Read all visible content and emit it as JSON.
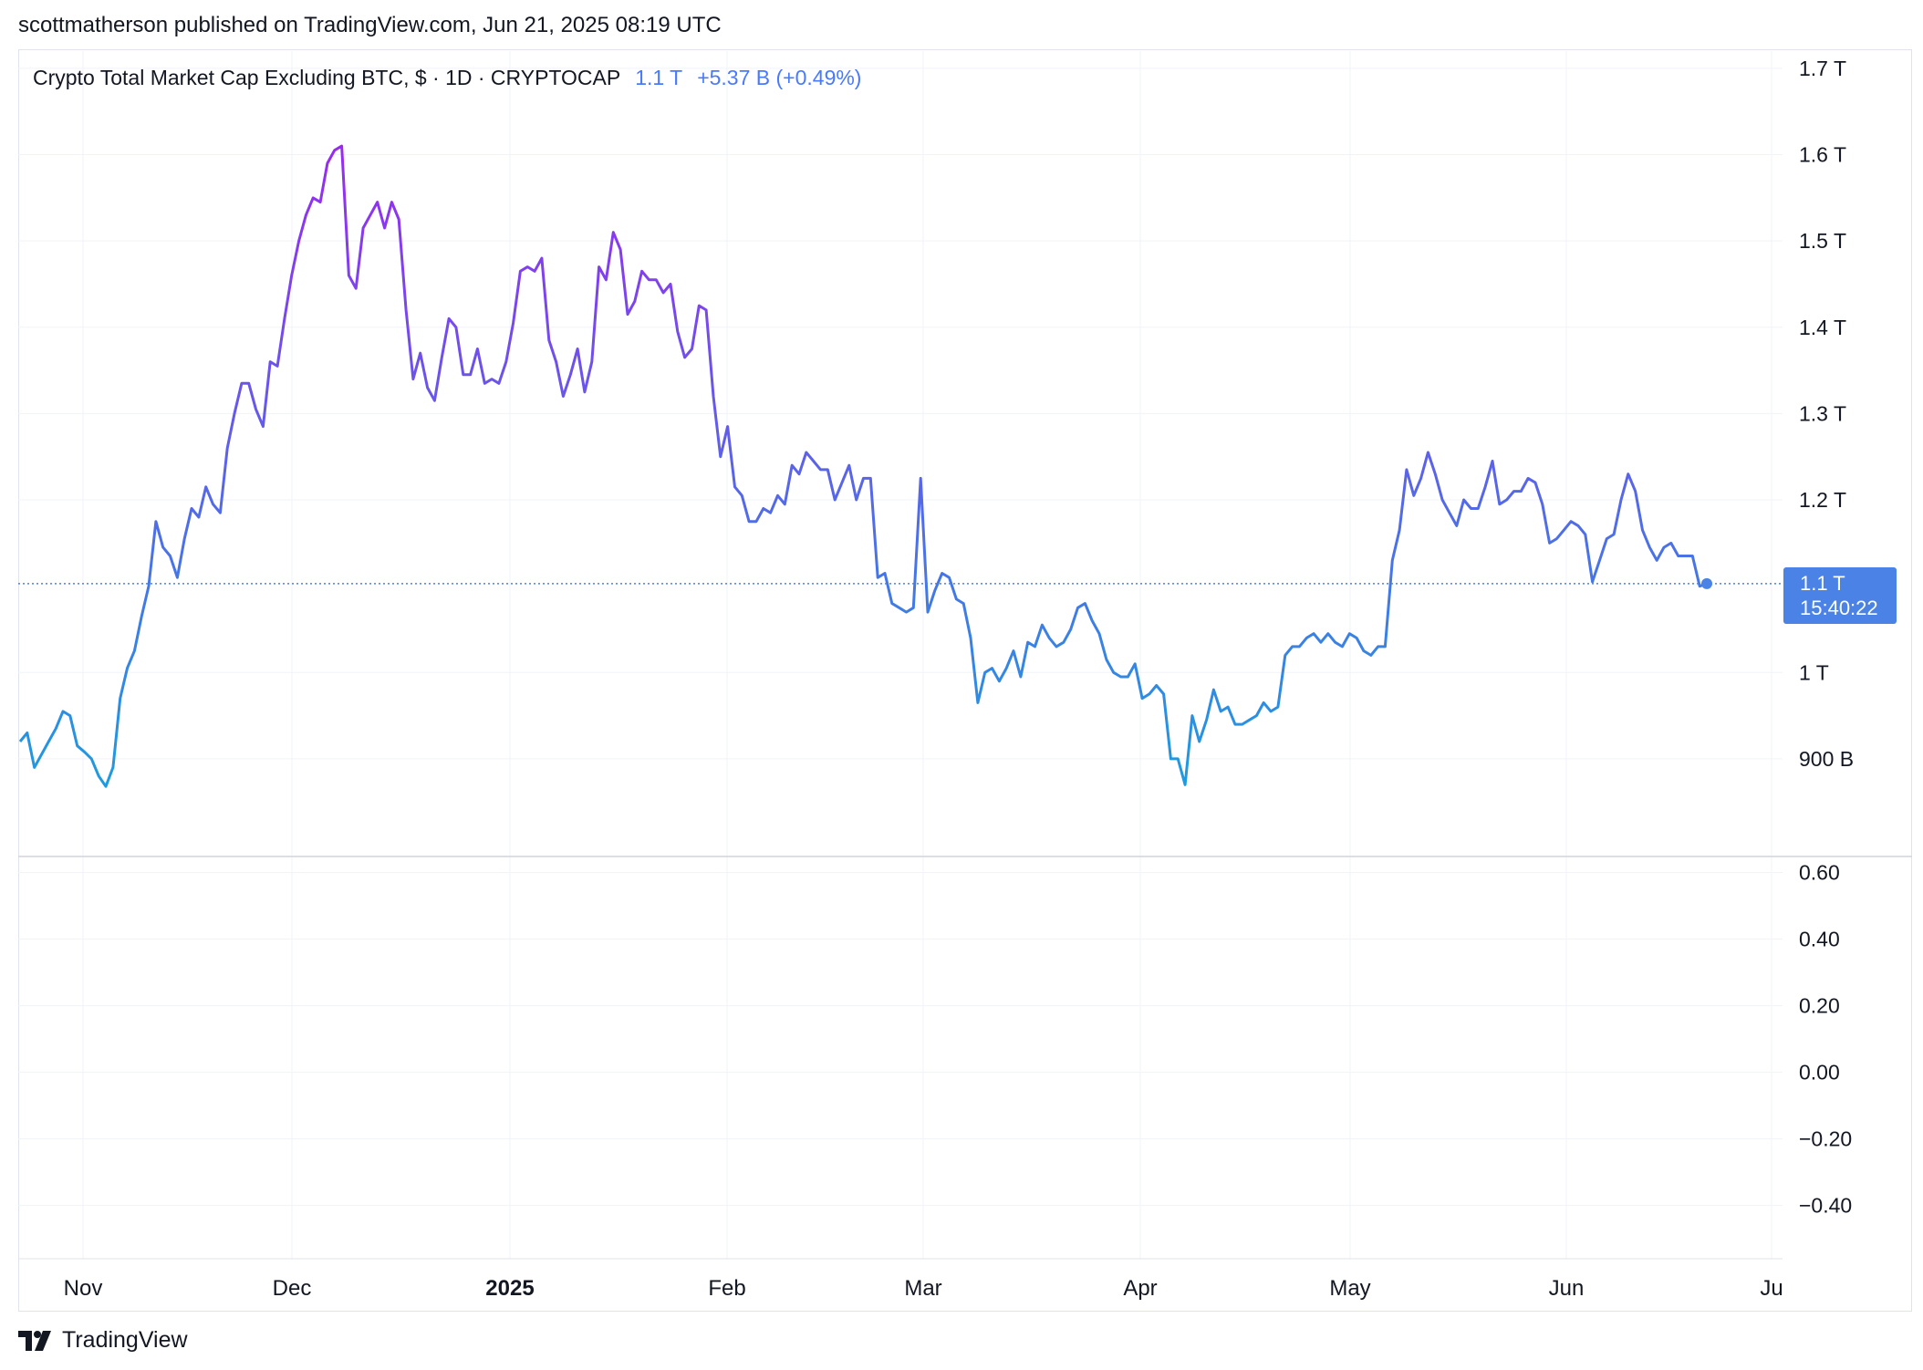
{
  "header": {
    "publisher_line": "scottmatherson published on TradingView.com, Jun 21, 2025 08:19 UTC"
  },
  "legend": {
    "symbol": "Crypto Total Market Cap Excluding BTC, $ · 1D · CRYPTOCAP",
    "last": "1.1 T",
    "change": "+5.37 B (+0.49%)"
  },
  "price_badge": {
    "price": "1.1 T",
    "countdown": "15:40:22"
  },
  "footer": {
    "brand": "TradingView",
    "logo_icon": "tradingview-logo-icon"
  },
  "colors": {
    "line_top": "#9c27f0",
    "line_bottom": "#1e9be0",
    "last_price": "#4a82e6",
    "grid": "#f0f3fa",
    "text": "#131722"
  },
  "chart_data": [
    {
      "type": "line",
      "title": "",
      "series": [
        {
          "values": [
            0.92,
            0.93,
            0.89,
            0.905,
            0.92,
            0.935,
            0.955,
            0.95,
            0.915,
            0.908,
            0.9,
            0.88,
            0.868,
            0.89,
            0.97,
            1.005,
            1.025,
            1.065,
            1.1,
            1.175,
            1.145,
            1.135,
            1.11,
            1.155,
            1.19,
            1.18,
            1.215,
            1.195,
            1.185,
            1.26,
            1.3,
            1.335,
            1.335,
            1.305,
            1.285,
            1.36,
            1.355,
            1.41,
            1.46,
            1.5,
            1.53,
            1.55,
            1.545,
            1.59,
            1.605,
            1.61,
            1.46,
            1.445,
            1.515,
            1.53,
            1.545,
            1.515,
            1.545,
            1.525,
            1.42,
            1.34,
            1.37,
            1.33,
            1.315,
            1.365,
            1.41,
            1.4,
            1.345,
            1.345,
            1.375,
            1.335,
            1.34,
            1.335,
            1.36,
            1.405,
            1.465,
            1.47,
            1.465,
            1.48,
            1.385,
            1.36,
            1.32,
            1.345,
            1.375,
            1.325,
            1.36,
            1.47,
            1.455,
            1.51,
            1.49,
            1.415,
            1.43,
            1.465,
            1.455,
            1.455,
            1.44,
            1.45,
            1.395,
            1.365,
            1.375,
            1.425,
            1.42,
            1.32,
            1.25,
            1.285,
            1.215,
            1.205,
            1.175,
            1.175,
            1.19,
            1.185,
            1.205,
            1.195,
            1.24,
            1.23,
            1.255,
            1.245,
            1.235,
            1.235,
            1.2,
            1.22,
            1.24,
            1.2,
            1.225,
            1.225,
            1.11,
            1.115,
            1.08,
            1.075,
            1.07,
            1.075,
            1.225,
            1.07,
            1.095,
            1.115,
            1.11,
            1.085,
            1.08,
            1.04,
            0.965,
            1.0,
            1.005,
            0.99,
            1.005,
            1.025,
            0.995,
            1.035,
            1.03,
            1.055,
            1.04,
            1.03,
            1.035,
            1.05,
            1.075,
            1.08,
            1.06,
            1.045,
            1.015,
            1.0,
            0.995,
            0.995,
            1.01,
            0.97,
            0.975,
            0.985,
            0.975,
            0.9,
            0.9,
            0.87,
            0.95,
            0.92,
            0.945,
            0.98,
            0.955,
            0.96,
            0.94,
            0.94,
            0.945,
            0.95,
            0.965,
            0.955,
            0.96,
            1.02,
            1.03,
            1.03,
            1.04,
            1.045,
            1.035,
            1.045,
            1.035,
            1.03,
            1.045,
            1.04,
            1.025,
            1.02,
            1.03,
            1.03,
            1.13,
            1.165,
            1.235,
            1.205,
            1.225,
            1.255,
            1.23,
            1.2,
            1.185,
            1.17,
            1.2,
            1.19,
            1.19,
            1.215,
            1.245,
            1.195,
            1.2,
            1.21,
            1.21,
            1.225,
            1.22,
            1.195,
            1.15,
            1.155,
            1.165,
            1.175,
            1.17,
            1.16,
            1.105,
            1.13,
            1.155,
            1.16,
            1.2,
            1.23,
            1.21,
            1.165,
            1.145,
            1.13,
            1.145,
            1.15,
            1.135,
            1.135,
            1.135,
            1.1,
            1.103
          ]
        }
      ],
      "y_ticks": [
        "1.7 T",
        "1.6 T",
        "1.5 T",
        "1.4 T",
        "1.3 T",
        "1.2 T",
        "1 T",
        "900 B"
      ],
      "ylim": [
        0.79,
        1.72
      ],
      "x_ticks": [
        "Nov",
        "Dec",
        "2025",
        "Feb",
        "Mar",
        "Apr",
        "May",
        "Jun",
        "Ju"
      ],
      "last_value": 1.103,
      "grid": true
    },
    {
      "type": "line",
      "title": "",
      "series": [],
      "y_ticks": [
        "0.60",
        "0.40",
        "0.20",
        "0.00",
        "−0.20",
        "−0.40"
      ],
      "ylim": [
        -0.56,
        0.64
      ],
      "grid": true
    }
  ]
}
